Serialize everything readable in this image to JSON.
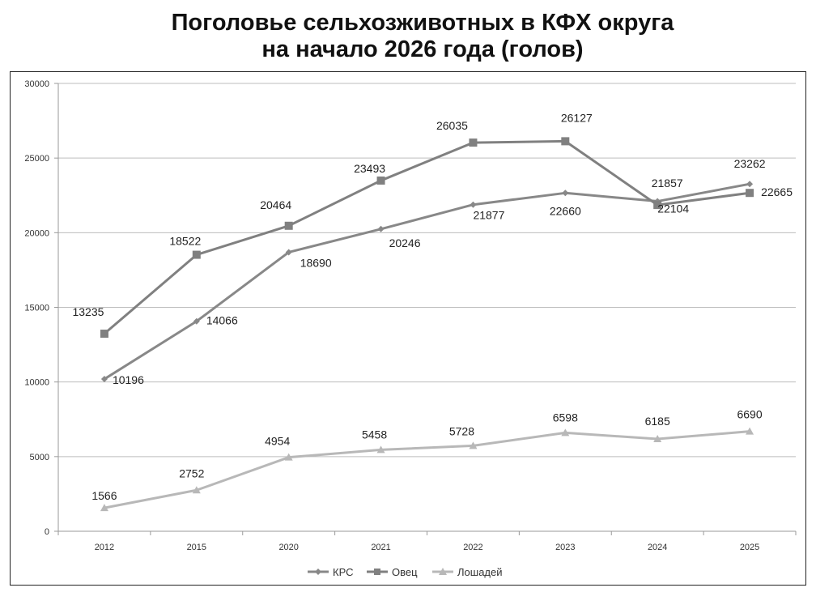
{
  "title_lines": [
    "Поголовье сельхозживотных в КФХ округа",
    "на начало 2026 года (голов)"
  ],
  "chart_data": {
    "type": "line",
    "title": "Поголовье сельхозживотных в КФХ округа на начало 2026 года (голов)",
    "categories": [
      "2012",
      "2015",
      "2020",
      "2021",
      "2022",
      "2023",
      "2024",
      "2025"
    ],
    "ylim": [
      0,
      30000
    ],
    "yticks": [
      0,
      5000,
      10000,
      15000,
      20000,
      25000,
      30000
    ],
    "grid": true,
    "legend_position": "bottom",
    "series": [
      {
        "name": "КРС",
        "marker": "diamond",
        "color": "#888888",
        "values": [
          10196,
          14066,
          18690,
          20246,
          21877,
          22660,
          22104,
          23262
        ]
      },
      {
        "name": "Овец",
        "marker": "square",
        "color": "#808080",
        "values": [
          13235,
          18522,
          20464,
          23493,
          26035,
          26127,
          21857,
          22665
        ]
      },
      {
        "name": "Лошадей",
        "marker": "triangle",
        "color": "#b8b8b8",
        "values": [
          1566,
          2752,
          4954,
          5458,
          5728,
          6598,
          6185,
          6690
        ]
      }
    ]
  }
}
